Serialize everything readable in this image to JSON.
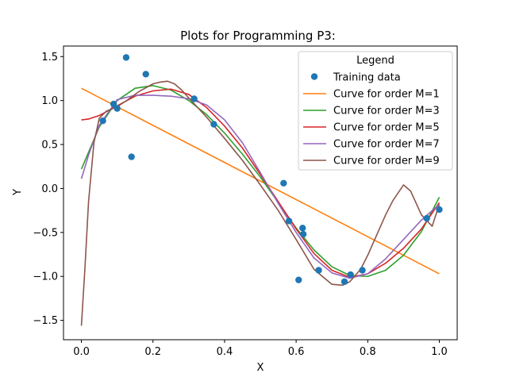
{
  "chart_data": {
    "type": "scatter",
    "title": "Plots for Programming P3:",
    "xlabel": "X",
    "ylabel": "Y",
    "xlim": [
      -0.05,
      1.05
    ],
    "ylim": [
      -1.72,
      1.62
    ],
    "xticks": [
      0.0,
      0.2,
      0.4,
      0.6,
      0.8,
      1.0
    ],
    "xtick_labels": [
      "0.0",
      "0.2",
      "0.4",
      "0.6",
      "0.8",
      "1.0"
    ],
    "yticks": [
      -1.5,
      -1.0,
      -0.5,
      0.0,
      0.5,
      1.0,
      1.5
    ],
    "ytick_labels": [
      "−1.5",
      "−1.0",
      "−0.5",
      "0.0",
      "0.5",
      "1.0",
      "1.5"
    ],
    "grid": false,
    "legend": {
      "title": "Legend",
      "placement": "top-right"
    },
    "training_data": {
      "name": "Training data",
      "color": "#1f77b4",
      "x": [
        0.06,
        0.09,
        0.1,
        0.125,
        0.14,
        0.18,
        0.315,
        0.37,
        0.565,
        0.58,
        0.607,
        0.618,
        0.62,
        0.663,
        0.735,
        0.752,
        0.785,
        0.965,
        1.0
      ],
      "y": [
        0.77,
        0.96,
        0.91,
        1.49,
        0.36,
        1.3,
        1.02,
        0.73,
        0.06,
        -0.37,
        -1.04,
        -0.45,
        -0.52,
        -0.93,
        -1.06,
        -0.98,
        -0.93,
        -0.34,
        -0.24
      ]
    },
    "series": [
      {
        "name": "Curve for order M=1",
        "color": "#ff7f0e",
        "x": [
          0.0,
          1.0
        ],
        "y": [
          1.14,
          -0.97
        ]
      },
      {
        "name": "Curve for order M=3",
        "color": "#2ca02c",
        "x": [
          0.0,
          0.05,
          0.1,
          0.15,
          0.2,
          0.25,
          0.3,
          0.35,
          0.4,
          0.45,
          0.5,
          0.55,
          0.6,
          0.65,
          0.7,
          0.75,
          0.8,
          0.85,
          0.9,
          0.95,
          1.0
        ],
        "y": [
          0.22,
          0.7,
          1.0,
          1.14,
          1.17,
          1.12,
          1.0,
          0.84,
          0.63,
          0.39,
          0.13,
          -0.16,
          -0.45,
          -0.7,
          -0.89,
          -0.99,
          -1.0,
          -0.93,
          -0.76,
          -0.49,
          -0.1
        ]
      },
      {
        "name": "Curve for order M=5",
        "color": "#d62728",
        "x": [
          0.0,
          0.02,
          0.05,
          0.1,
          0.15,
          0.2,
          0.25,
          0.3,
          0.35,
          0.4,
          0.45,
          0.5,
          0.55,
          0.6,
          0.65,
          0.7,
          0.75,
          0.8,
          0.85,
          0.9,
          0.95,
          1.0
        ],
        "y": [
          0.78,
          0.79,
          0.83,
          0.94,
          1.05,
          1.11,
          1.13,
          1.07,
          0.92,
          0.71,
          0.46,
          0.16,
          -0.15,
          -0.46,
          -0.74,
          -0.93,
          -1.01,
          -0.97,
          -0.85,
          -0.68,
          -0.46,
          -0.16
        ]
      },
      {
        "name": "Curve for order M=7",
        "color": "#9467bd",
        "x": [
          0.0,
          0.02,
          0.05,
          0.1,
          0.15,
          0.2,
          0.25,
          0.3,
          0.35,
          0.4,
          0.45,
          0.5,
          0.55,
          0.6,
          0.65,
          0.7,
          0.75,
          0.8,
          0.85,
          0.9,
          0.95,
          1.0
        ],
        "y": [
          0.11,
          0.38,
          0.72,
          1.01,
          1.06,
          1.06,
          1.05,
          1.02,
          0.95,
          0.78,
          0.52,
          0.18,
          -0.17,
          -0.5,
          -0.79,
          -0.96,
          -1.02,
          -0.97,
          -0.8,
          -0.58,
          -0.36,
          -0.18
        ]
      },
      {
        "name": "Curve for order M=9",
        "color": "#8c564b",
        "x": [
          0.0,
          0.01,
          0.02,
          0.035,
          0.05,
          0.07,
          0.1,
          0.13,
          0.16,
          0.2,
          0.22,
          0.24,
          0.26,
          0.28,
          0.3,
          0.35,
          0.4,
          0.45,
          0.5,
          0.55,
          0.6,
          0.65,
          0.7,
          0.73,
          0.75,
          0.78,
          0.8,
          0.85,
          0.87,
          0.9,
          0.92,
          0.95,
          0.98,
          1.0
        ],
        "y": [
          -1.56,
          -0.9,
          -0.15,
          0.52,
          0.8,
          0.88,
          0.93,
          1.01,
          1.1,
          1.19,
          1.21,
          1.22,
          1.19,
          1.12,
          1.03,
          0.81,
          0.57,
          0.32,
          0.04,
          -0.25,
          -0.58,
          -0.92,
          -1.09,
          -1.1,
          -1.06,
          -0.92,
          -0.76,
          -0.3,
          -0.14,
          0.04,
          -0.03,
          -0.3,
          -0.43,
          -0.18
        ]
      }
    ]
  }
}
